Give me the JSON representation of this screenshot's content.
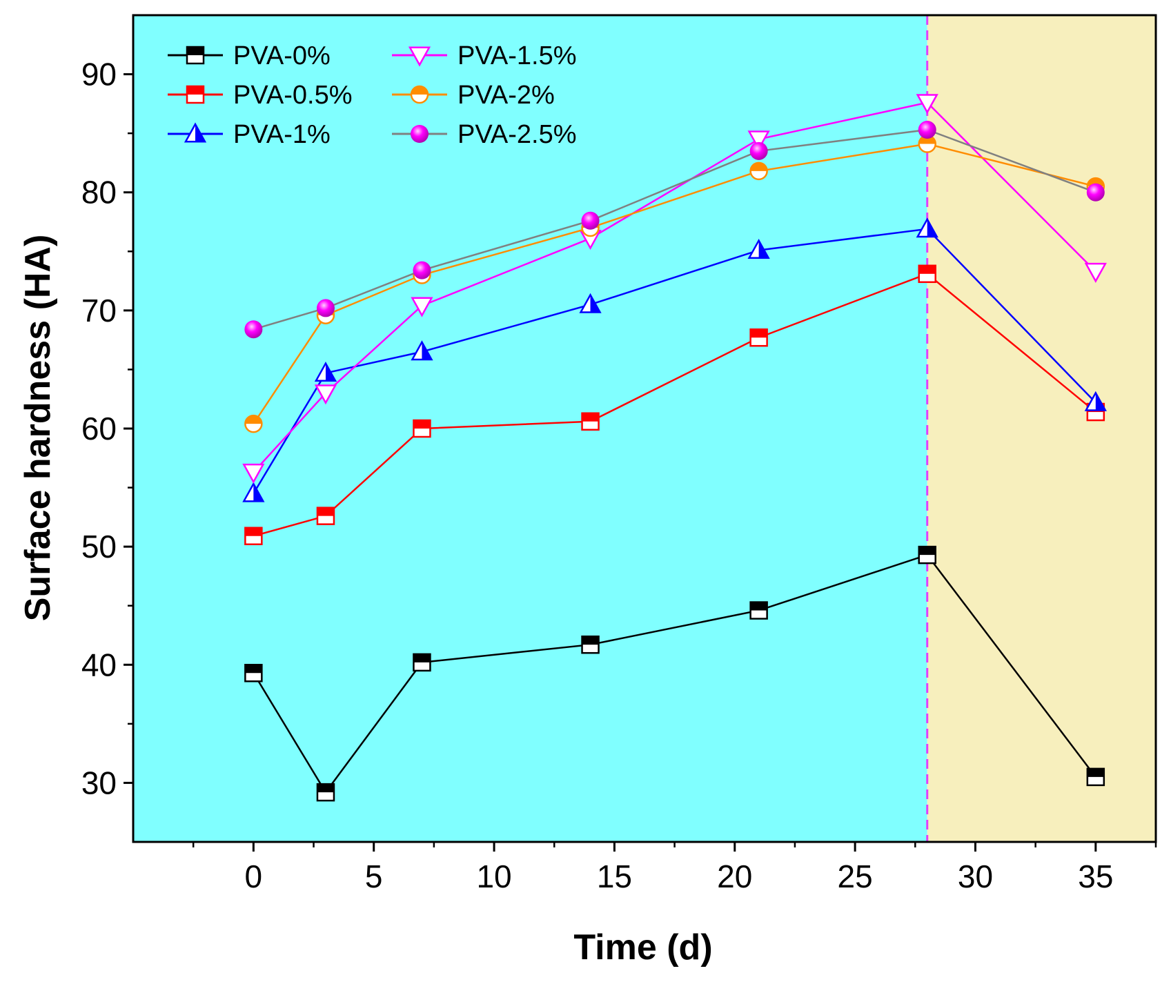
{
  "chart_data": {
    "type": "line",
    "title": "",
    "xlabel": "Time (d)",
    "ylabel": "Surface hardness (HA)",
    "xlim": [
      -5,
      37.5
    ],
    "ylim": [
      25,
      95
    ],
    "xticks": [
      0,
      5,
      10,
      15,
      20,
      25,
      30,
      35
    ],
    "yticks": [
      30,
      40,
      50,
      60,
      70,
      80,
      90
    ],
    "x": [
      0,
      3,
      7,
      14,
      21,
      28,
      35
    ],
    "divider_x": 28,
    "regions": [
      {
        "from": -5,
        "to": 28,
        "color": "#80ffff"
      },
      {
        "from": 28,
        "to": 37.5,
        "color": "#f7efbd"
      }
    ],
    "divider_color": "#e040fb",
    "legend_position": "top-left",
    "series": [
      {
        "name": "PVA-0%",
        "color": "#000000",
        "marker": "square-half",
        "values": [
          39.3,
          29.2,
          40.2,
          41.7,
          44.6,
          49.3,
          30.5
        ]
      },
      {
        "name": "PVA-0.5%",
        "color": "#ff0000",
        "marker": "square-half",
        "values": [
          50.9,
          52.6,
          60.0,
          60.6,
          67.7,
          73.1,
          61.4
        ]
      },
      {
        "name": "PVA-1%",
        "color": "#0000ff",
        "marker": "triangle-up-half",
        "values": [
          54.5,
          64.7,
          66.5,
          70.5,
          75.1,
          76.9,
          62.2
        ]
      },
      {
        "name": "PVA-1.5%",
        "color": "#ff00ff",
        "marker": "triangle-down-open",
        "values": [
          56.3,
          63.0,
          70.4,
          76.1,
          84.5,
          87.6,
          73.3
        ]
      },
      {
        "name": "PVA-2%",
        "color": "#ff8c00",
        "marker": "circle-half",
        "values": [
          60.4,
          69.6,
          73.0,
          77.0,
          81.8,
          84.1,
          80.5
        ]
      },
      {
        "name": "PVA-2.5%",
        "color": "#808080",
        "marker": "sphere",
        "marker_color": "#ff00ff",
        "values": [
          68.4,
          70.2,
          73.4,
          77.6,
          83.5,
          85.3,
          80.0
        ]
      }
    ]
  }
}
